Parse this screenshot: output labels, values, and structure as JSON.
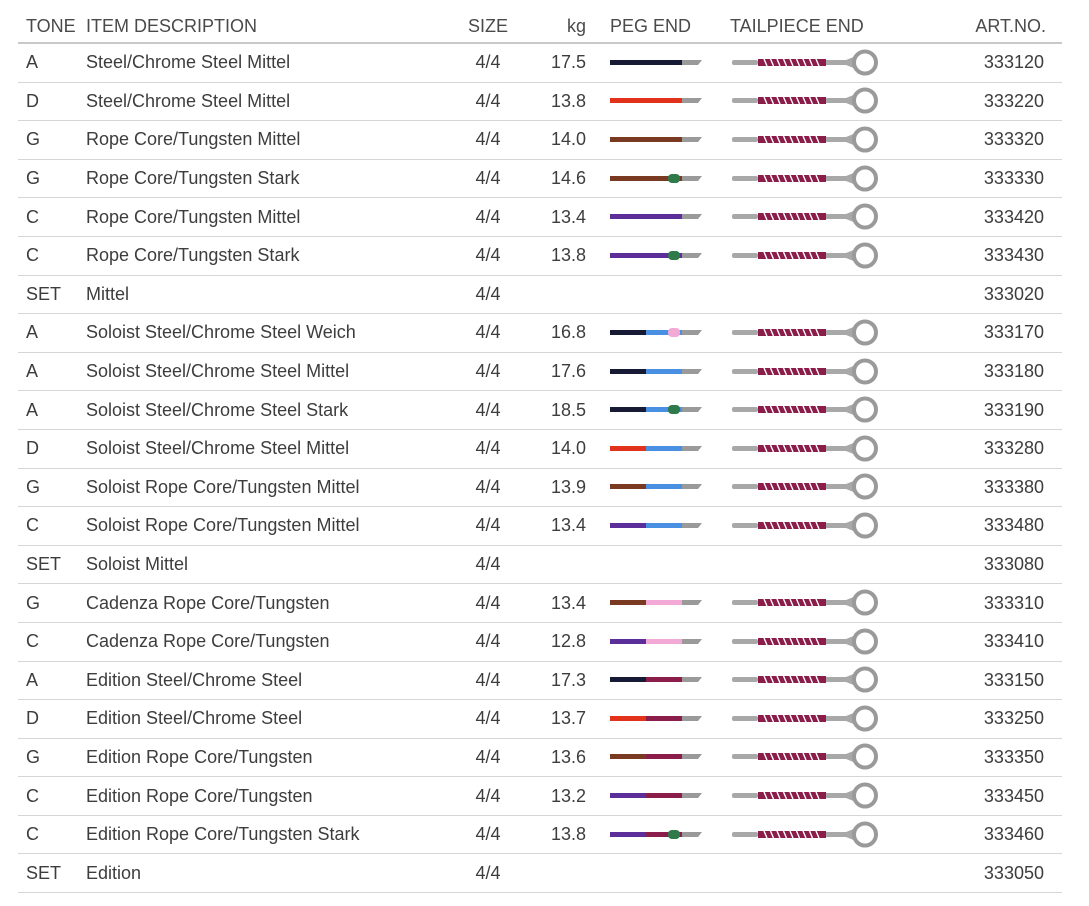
{
  "headers": {
    "tone": "TONE",
    "description": "ITEM DESCRIPTION",
    "size": "SIZE",
    "kg": "kg",
    "peg_end": "PEG END",
    "tailpiece_end": "TAILPIECE END",
    "art_no": "ART.NO."
  },
  "colors": {
    "A": "#161a34",
    "D": "#e2321c",
    "G": "#7a3a22",
    "C": "#5b2e9a",
    "soloist_band": "#4a90e2",
    "cadenza_band": "#f2a9d6",
    "edition_band": "#8a1d4a",
    "weich_dot": "#f2a9d6",
    "stark_dot": "#2f7a4a",
    "tail_wrap": "#8a1d4a",
    "grey": "#9a9a9a"
  },
  "rows": [
    {
      "tone": "A",
      "description": "Steel/Chrome Steel Mittel",
      "size": "4/4",
      "kg": "17.5",
      "peg": {
        "base": "A",
        "band": null,
        "dot": null
      },
      "art_no": "333120"
    },
    {
      "tone": "D",
      "description": "Steel/Chrome Steel Mittel",
      "size": "4/4",
      "kg": "13.8",
      "peg": {
        "base": "D",
        "band": null,
        "dot": null
      },
      "art_no": "333220"
    },
    {
      "tone": "G",
      "description": "Rope Core/Tungsten Mittel",
      "size": "4/4",
      "kg": "14.0",
      "peg": {
        "base": "G",
        "band": null,
        "dot": null
      },
      "art_no": "333320"
    },
    {
      "tone": "G",
      "description": "Rope Core/Tungsten Stark",
      "size": "4/4",
      "kg": "14.6",
      "peg": {
        "base": "G",
        "band": null,
        "dot": "stark"
      },
      "art_no": "333330"
    },
    {
      "tone": "C",
      "description": "Rope Core/Tungsten Mittel",
      "size": "4/4",
      "kg": "13.4",
      "peg": {
        "base": "C",
        "band": null,
        "dot": null
      },
      "art_no": "333420"
    },
    {
      "tone": "C",
      "description": "Rope Core/Tungsten Stark",
      "size": "4/4",
      "kg": "13.8",
      "peg": {
        "base": "C",
        "band": null,
        "dot": "stark"
      },
      "art_no": "333430"
    },
    {
      "tone": "SET",
      "description": "Mittel",
      "size": "4/4",
      "kg": "",
      "peg": null,
      "art_no": "333020"
    },
    {
      "tone": "A",
      "description": "Soloist Steel/Chrome Steel Weich",
      "size": "4/4",
      "kg": "16.8",
      "peg": {
        "base": "A",
        "band": "soloist",
        "dot": "weich"
      },
      "art_no": "333170"
    },
    {
      "tone": "A",
      "description": "Soloist Steel/Chrome Steel Mittel",
      "size": "4/4",
      "kg": "17.6",
      "peg": {
        "base": "A",
        "band": "soloist",
        "dot": null
      },
      "art_no": "333180"
    },
    {
      "tone": "A",
      "description": "Soloist Steel/Chrome Steel Stark",
      "size": "4/4",
      "kg": "18.5",
      "peg": {
        "base": "A",
        "band": "soloist",
        "dot": "stark"
      },
      "art_no": "333190"
    },
    {
      "tone": "D",
      "description": "Soloist Steel/Chrome Steel Mittel",
      "size": "4/4",
      "kg": "14.0",
      "peg": {
        "base": "D",
        "band": "soloist",
        "dot": null
      },
      "art_no": "333280"
    },
    {
      "tone": "G",
      "description": "Soloist Rope Core/Tungsten Mittel",
      "size": "4/4",
      "kg": "13.9",
      "peg": {
        "base": "G",
        "band": "soloist",
        "dot": null
      },
      "art_no": "333380"
    },
    {
      "tone": "C",
      "description": "Soloist Rope Core/Tungsten Mittel",
      "size": "4/4",
      "kg": "13.4",
      "peg": {
        "base": "C",
        "band": "soloist",
        "dot": null
      },
      "art_no": "333480"
    },
    {
      "tone": "SET",
      "description": "Soloist Mittel",
      "size": "4/4",
      "kg": "",
      "peg": null,
      "art_no": "333080"
    },
    {
      "tone": "G",
      "description": "Cadenza Rope Core/Tungsten",
      "size": "4/4",
      "kg": "13.4",
      "peg": {
        "base": "G",
        "band": "cadenza",
        "dot": null
      },
      "art_no": "333310"
    },
    {
      "tone": "C",
      "description": "Cadenza Rope Core/Tungsten",
      "size": "4/4",
      "kg": "12.8",
      "peg": {
        "base": "C",
        "band": "cadenza",
        "dot": null
      },
      "art_no": "333410"
    },
    {
      "tone": "A",
      "description": "Edition Steel/Chrome Steel",
      "size": "4/4",
      "kg": "17.3",
      "peg": {
        "base": "A",
        "band": "edition",
        "dot": null
      },
      "art_no": "333150"
    },
    {
      "tone": "D",
      "description": "Edition Steel/Chrome Steel",
      "size": "4/4",
      "kg": "13.7",
      "peg": {
        "base": "D",
        "band": "edition",
        "dot": null
      },
      "art_no": "333250"
    },
    {
      "tone": "G",
      "description": "Edition Rope Core/Tungsten",
      "size": "4/4",
      "kg": "13.6",
      "peg": {
        "base": "G",
        "band": "edition",
        "dot": null
      },
      "art_no": "333350"
    },
    {
      "tone": "C",
      "description": "Edition Rope Core/Tungsten",
      "size": "4/4",
      "kg": "13.2",
      "peg": {
        "base": "C",
        "band": "edition",
        "dot": null
      },
      "art_no": "333450"
    },
    {
      "tone": "C",
      "description": "Edition Rope Core/Tungsten Stark",
      "size": "4/4",
      "kg": "13.8",
      "peg": {
        "base": "C",
        "band": "edition",
        "dot": "stark"
      },
      "art_no": "333460"
    },
    {
      "tone": "SET",
      "description": "Edition",
      "size": "4/4",
      "kg": "",
      "peg": null,
      "art_no": "333050"
    }
  ]
}
